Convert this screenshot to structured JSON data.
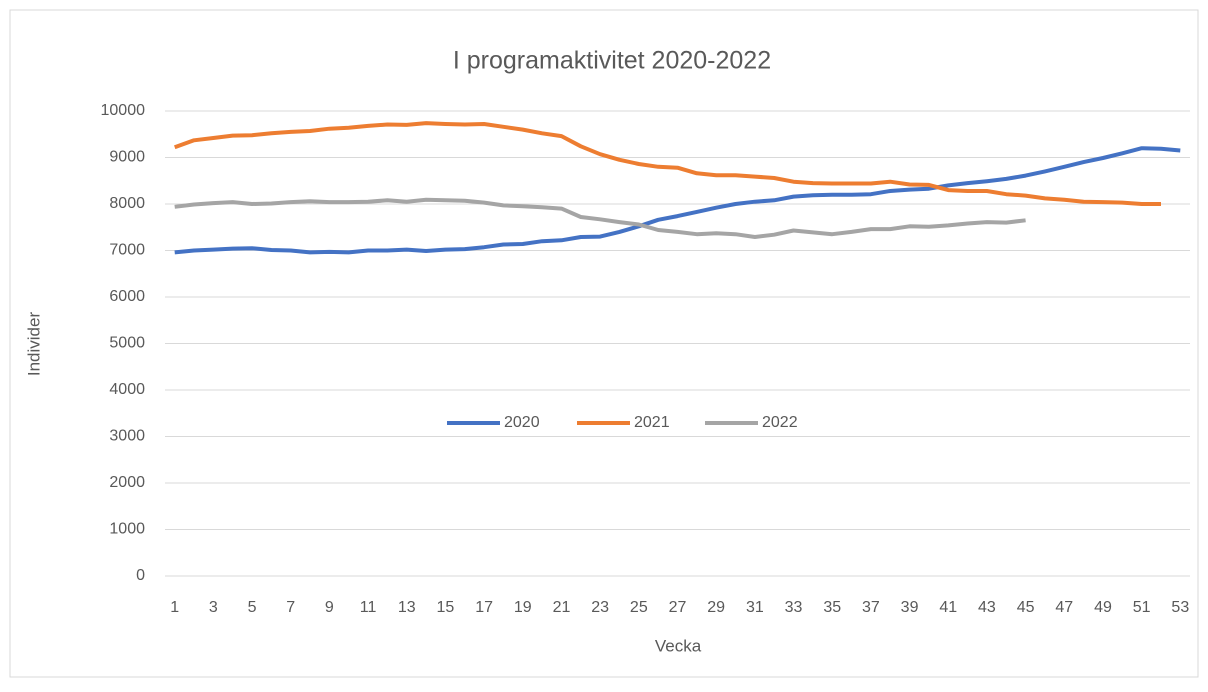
{
  "chart_data": {
    "type": "line",
    "title": "I programaktivitet 2020-2022",
    "x_label": "Vecka",
    "y_label": "Individer",
    "categories": [
      1,
      null,
      3,
      null,
      5,
      null,
      7,
      null,
      9,
      null,
      11,
      null,
      13,
      null,
      15,
      null,
      17,
      null,
      19,
      null,
      21,
      null,
      23,
      null,
      25,
      null,
      27,
      null,
      29,
      null,
      31,
      null,
      33,
      null,
      35,
      null,
      37,
      null,
      39,
      null,
      41,
      null,
      43,
      null,
      45,
      null,
      47,
      null,
      49,
      null,
      51,
      null,
      53
    ],
    "series": [
      {
        "name": "2020",
        "color": "#4472c4",
        "values": [
          6960,
          7000,
          7020,
          7040,
          7050,
          7010,
          7000,
          6960,
          6970,
          6960,
          7000,
          7000,
          7020,
          6990,
          7020,
          7030,
          7070,
          7130,
          7140,
          7200,
          7220,
          7290,
          7300,
          7400,
          7520,
          7660,
          7740,
          7830,
          7920,
          8000,
          8050,
          8080,
          8160,
          8190,
          8200,
          8200,
          8210,
          8280,
          8310,
          8330,
          8400,
          8450,
          8490,
          8540,
          8610,
          8700,
          8800,
          8900,
          8990,
          9090,
          9200,
          9190,
          9150
        ]
      },
      {
        "name": "2021",
        "color": "#ed7d31",
        "values": [
          9220,
          9370,
          9420,
          9470,
          9480,
          9520,
          9550,
          9570,
          9620,
          9640,
          9680,
          9710,
          9700,
          9740,
          9720,
          9710,
          9720,
          9660,
          9600,
          9520,
          9460,
          9240,
          9070,
          8950,
          8860,
          8800,
          8780,
          8660,
          8620,
          8620,
          8590,
          8560,
          8480,
          8450,
          8440,
          8440,
          8440,
          8480,
          8420,
          8410,
          8300,
          8280,
          8280,
          8210,
          8180,
          8120,
          8090,
          8050,
          8040,
          8030,
          8000,
          8000,
          null
        ]
      },
      {
        "name": "2022",
        "color": "#a5a5a5",
        "values": [
          7940,
          7990,
          8020,
          8040,
          8000,
          8010,
          8040,
          8060,
          8040,
          8040,
          8050,
          8080,
          8050,
          8090,
          8080,
          8070,
          8030,
          7970,
          7950,
          7930,
          7900,
          7720,
          7670,
          7610,
          7560,
          7440,
          7400,
          7350,
          7370,
          7350,
          7290,
          7340,
          7430,
          7390,
          7350,
          7400,
          7460,
          7460,
          7520,
          7510,
          7540,
          7580,
          7610,
          7600,
          7650,
          null,
          null,
          null,
          null,
          null,
          null,
          null,
          null
        ]
      }
    ],
    "ylim": [
      0,
      10000
    ],
    "yticks": [
      0,
      1000,
      2000,
      3000,
      4000,
      5000,
      6000,
      7000,
      8000,
      9000,
      10000
    ],
    "grid": true,
    "legend": "center"
  }
}
